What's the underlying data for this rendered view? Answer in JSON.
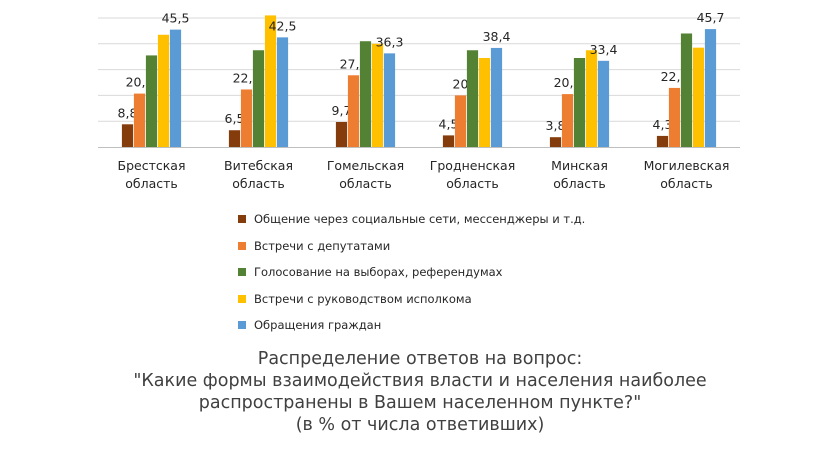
{
  "chart_data": {
    "type": "bar",
    "categories": [
      [
        "Брестская",
        "область"
      ],
      [
        "Витебская",
        "область"
      ],
      [
        "Гомельская",
        "область"
      ],
      [
        "Гродненская",
        "область"
      ],
      [
        "Минская",
        "область"
      ],
      [
        "Могилевская",
        "область"
      ]
    ],
    "series": [
      {
        "name": "Общение через социальные сети, мессенджеры и т.д.",
        "color": "#843c0c",
        "values": [
          8.8,
          6.5,
          9.7,
          4.5,
          3.8,
          4.3
        ],
        "labels": [
          "8,8",
          "6,5",
          "9,7",
          "4,5",
          "3,8",
          "4,3"
        ]
      },
      {
        "name": "Встречи с депутатами",
        "color": "#ed7d31",
        "values": [
          20.7,
          22.3,
          27.8,
          20,
          20.5,
          22.9
        ],
        "labels": [
          "20,7",
          "22,3",
          "27,8",
          "20",
          "20,5",
          "22,9"
        ]
      },
      {
        "name": "Голосование на выборах, референдумах",
        "color": "#548235",
        "values": [
          35.5,
          37.5,
          41,
          37.5,
          34.5,
          44
        ],
        "labels": []
      },
      {
        "name": "Встречи с руководством исполкома",
        "color": "#ffc000",
        "values": [
          43.5,
          51,
          40,
          34.5,
          37.5,
          38.5
        ],
        "labels": []
      },
      {
        "name": "Обращения граждан",
        "color": "#5b9bd5",
        "values": [
          45.5,
          42.5,
          36.3,
          38.4,
          33.4,
          45.7
        ],
        "labels": [
          "45,5",
          "42,5",
          "36,3",
          "38,4",
          "33,4",
          "45,7"
        ]
      }
    ],
    "ylim": [
      0,
      50
    ],
    "grid": true,
    "legend_position": "bottom"
  },
  "caption": {
    "line1": "Распределение ответов на вопрос:",
    "line2": "\"Какие формы взаимодействия власти и населения наиболее",
    "line3": "распространены в Вашем населенном пункте?\"",
    "line4": "(в % от числа ответивших)"
  }
}
